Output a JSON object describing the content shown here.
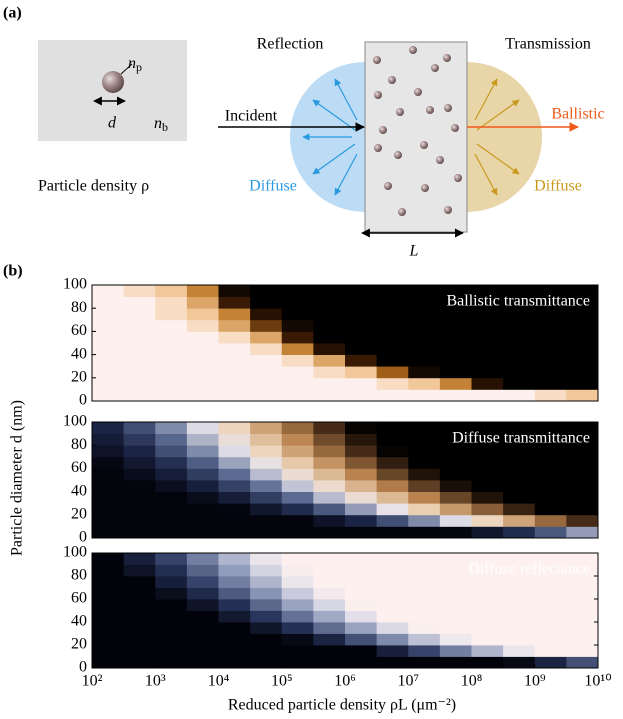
{
  "panel_a": {
    "label": "(a)",
    "n_p": {
      "base": "n",
      "sub": "p"
    },
    "d": "d",
    "n_b": {
      "base": "n",
      "sub": "b"
    },
    "density": "Particle density ρ",
    "reflection": "Reflection",
    "transmission": "Transmission",
    "incident": "Incident",
    "ballistic": "Ballistic",
    "diffuse_left": "Diffuse",
    "diffuse_right": "Diffuse",
    "L": "L"
  },
  "panel_b": {
    "label": "(b)",
    "xlabel": "Reduced particle density ρL (μm⁻²)",
    "ylabel": "Particle diameter d (nm)"
  },
  "chart_data": [
    {
      "type": "heatmap",
      "annotation": "Ballistic transmittance",
      "xscale": "log",
      "x_bins": [
        100,
        316.2,
        1000,
        3162,
        10000,
        31623,
        100000,
        316228,
        1000000,
        3162278,
        10000000,
        31622777,
        100000000,
        316227766,
        1000000000,
        3162277660,
        10000000000
      ],
      "y_bins": [
        0,
        10,
        20,
        30,
        40,
        50,
        60,
        70,
        80,
        90,
        100
      ],
      "xlim": [
        100,
        10000000000
      ],
      "ylim": [
        0,
        100
      ],
      "yticks": [
        0,
        20,
        40,
        60,
        80,
        100
      ],
      "colormap": [
        [
          0,
          "#000000"
        ],
        [
          0.3,
          "#3a1a05"
        ],
        [
          0.55,
          "#b8701e"
        ],
        [
          0.8,
          "#f2c89a"
        ],
        [
          1,
          "#fdf0ee"
        ]
      ],
      "values": [
        [
          1,
          1,
          1,
          1,
          1,
          1,
          1,
          1,
          1,
          1,
          1,
          1,
          1,
          1,
          0.9,
          0.8
        ],
        [
          1,
          1,
          1,
          1,
          1,
          1,
          1,
          1,
          1,
          0.9,
          0.8,
          0.6,
          0.2,
          0,
          0,
          0
        ],
        [
          1,
          1,
          1,
          1,
          1,
          1,
          1,
          0.9,
          0.8,
          0.5,
          0.1,
          0,
          0,
          0,
          0,
          0
        ],
        [
          1,
          1,
          1,
          1,
          1,
          1,
          0.9,
          0.7,
          0.3,
          0,
          0,
          0,
          0,
          0,
          0,
          0
        ],
        [
          1,
          1,
          1,
          1,
          1,
          0.9,
          0.6,
          0.2,
          0,
          0,
          0,
          0,
          0,
          0,
          0,
          0
        ],
        [
          1,
          1,
          1,
          1,
          0.9,
          0.7,
          0.3,
          0,
          0,
          0,
          0,
          0,
          0,
          0,
          0,
          0
        ],
        [
          1,
          1,
          1,
          0.9,
          0.7,
          0.4,
          0.1,
          0,
          0,
          0,
          0,
          0,
          0,
          0,
          0,
          0
        ],
        [
          1,
          1,
          0.9,
          0.8,
          0.6,
          0.2,
          0,
          0,
          0,
          0,
          0,
          0,
          0,
          0,
          0,
          0
        ],
        [
          1,
          1,
          0.9,
          0.7,
          0.3,
          0,
          0,
          0,
          0,
          0,
          0,
          0,
          0,
          0,
          0,
          0
        ],
        [
          1,
          0.9,
          0.8,
          0.6,
          0.1,
          0,
          0,
          0,
          0,
          0,
          0,
          0,
          0,
          0,
          0,
          0
        ]
      ]
    },
    {
      "type": "heatmap",
      "annotation": "Diffuse transmittance",
      "xscale": "log",
      "x_bins": [
        100,
        316.2,
        1000,
        3162,
        10000,
        31623,
        100000,
        316228,
        1000000,
        3162278,
        10000000,
        31622777,
        100000000,
        316227766,
        1000000000,
        3162277660,
        10000000000
      ],
      "y_bins": [
        0,
        10,
        20,
        30,
        40,
        50,
        60,
        70,
        80,
        90,
        100
      ],
      "xlim": [
        100,
        10000000000
      ],
      "ylim": [
        0,
        100
      ],
      "yticks": [
        0,
        20,
        40,
        60,
        80,
        100
      ],
      "colormap": [
        [
          0,
          "#03040c"
        ],
        [
          0.2,
          "#1c2648"
        ],
        [
          0.35,
          "#5b6b92"
        ],
        [
          0.5,
          "#e6e4ec"
        ],
        [
          0.6,
          "#eed4b8"
        ],
        [
          0.75,
          "#b9824e"
        ],
        [
          0.9,
          "#3e2614"
        ],
        [
          1,
          "#000000"
        ]
      ],
      "values": [
        [
          0,
          0,
          0,
          0,
          0,
          0,
          0,
          0,
          0,
          0,
          0,
          0.01,
          0.11,
          0.21,
          0.31,
          0.41
        ],
        [
          0,
          0,
          0,
          0,
          0,
          0,
          0,
          0.09,
          0.19,
          0.29,
          0.39,
          0.49,
          0.59,
          0.69,
          0.79,
          0.89
        ],
        [
          0,
          0,
          0,
          0,
          0.01,
          0.11,
          0.21,
          0.31,
          0.41,
          0.51,
          0.61,
          0.71,
          0.81,
          0.91,
          1,
          1
        ],
        [
          0,
          0,
          0,
          0.05,
          0.15,
          0.25,
          0.35,
          0.45,
          0.55,
          0.65,
          0.75,
          0.85,
          0.95,
          1,
          1,
          1
        ],
        [
          0,
          0,
          0.06,
          0.16,
          0.26,
          0.36,
          0.46,
          0.56,
          0.66,
          0.76,
          0.86,
          0.96,
          1,
          1,
          1,
          1
        ],
        [
          0,
          0.05,
          0.15,
          0.25,
          0.35,
          0.45,
          0.55,
          0.65,
          0.75,
          0.85,
          0.95,
          1,
          1,
          1,
          1,
          1
        ],
        [
          0.02,
          0.12,
          0.22,
          0.32,
          0.42,
          0.52,
          0.62,
          0.72,
          0.82,
          0.92,
          1,
          1,
          1,
          1,
          1,
          1
        ],
        [
          0.09,
          0.19,
          0.29,
          0.39,
          0.49,
          0.59,
          0.69,
          0.79,
          0.89,
          0.99,
          1,
          1,
          1,
          1,
          1,
          1
        ],
        [
          0.14,
          0.24,
          0.34,
          0.44,
          0.54,
          0.64,
          0.74,
          0.84,
          0.94,
          1,
          1,
          1,
          1,
          1,
          1,
          1
        ],
        [
          0.19,
          0.29,
          0.39,
          0.49,
          0.59,
          0.69,
          0.79,
          0.89,
          0.99,
          1,
          1,
          1,
          1,
          1,
          1,
          1
        ]
      ]
    },
    {
      "type": "heatmap",
      "annotation": "Diffuse reflectance",
      "xscale": "log",
      "x_bins": [
        100,
        316.2,
        1000,
        3162,
        10000,
        31623,
        100000,
        316228,
        1000000,
        3162278,
        10000000,
        31622777,
        100000000,
        316227766,
        1000000000,
        3162277660,
        10000000000
      ],
      "y_bins": [
        0,
        10,
        20,
        30,
        40,
        50,
        60,
        70,
        80,
        90,
        100
      ],
      "xlim": [
        100,
        10000000000
      ],
      "ylim": [
        0,
        100
      ],
      "yticks": [
        0,
        20,
        40,
        60,
        80,
        100
      ],
      "xticks": [
        {
          "value": 100,
          "label": "10²"
        },
        {
          "value": 1000,
          "label": "10³"
        },
        {
          "value": 10000,
          "label": "10⁴"
        },
        {
          "value": 100000,
          "label": "10⁵"
        },
        {
          "value": 1000000,
          "label": "10⁶"
        },
        {
          "value": 10000000,
          "label": "10⁷"
        },
        {
          "value": 100000000,
          "label": "10⁸"
        },
        {
          "value": 1000000000,
          "label": "10⁹"
        },
        {
          "value": 10000000000,
          "label": "10¹⁰"
        }
      ],
      "colormap": [
        [
          0,
          "#02030a"
        ],
        [
          0.3,
          "#26325a"
        ],
        [
          0.6,
          "#8a97b8"
        ],
        [
          0.85,
          "#e6e2ec"
        ],
        [
          1,
          "#fdf0ee"
        ]
      ],
      "values": [
        [
          0,
          0,
          0,
          0,
          0,
          0,
          0,
          0,
          0,
          0,
          0,
          0,
          0,
          0.04,
          0.21,
          0.39
        ],
        [
          0,
          0,
          0,
          0,
          0,
          0,
          0,
          0,
          0,
          0.18,
          0.35,
          0.53,
          0.7,
          0.88,
          1,
          1
        ],
        [
          0,
          0,
          0,
          0,
          0,
          0,
          0.04,
          0.21,
          0.39,
          0.56,
          0.74,
          0.91,
          1,
          1,
          1,
          1
        ],
        [
          0,
          0,
          0,
          0,
          0,
          0.12,
          0.29,
          0.47,
          0.64,
          0.82,
          0.99,
          1,
          1,
          1,
          1,
          1
        ],
        [
          0,
          0,
          0,
          0,
          0.14,
          0.31,
          0.49,
          0.66,
          0.84,
          1,
          1,
          1,
          1,
          1,
          1,
          1
        ],
        [
          0,
          0,
          0,
          0.11,
          0.29,
          0.46,
          0.64,
          0.81,
          0.99,
          1,
          1,
          1,
          1,
          1,
          1,
          1
        ],
        [
          0,
          0,
          0.07,
          0.24,
          0.42,
          0.59,
          0.77,
          0.94,
          1,
          1,
          1,
          1,
          1,
          1,
          1,
          1
        ],
        [
          0,
          0,
          0.18,
          0.35,
          0.53,
          0.7,
          0.88,
          1,
          1,
          1,
          1,
          1,
          1,
          1,
          1,
          1
        ],
        [
          0,
          0.1,
          0.27,
          0.45,
          0.62,
          0.8,
          0.97,
          1,
          1,
          1,
          1,
          1,
          1,
          1,
          1,
          1
        ],
        [
          0,
          0.18,
          0.35,
          0.53,
          0.7,
          0.88,
          1,
          1,
          1,
          1,
          1,
          1,
          1,
          1,
          1,
          1
        ]
      ]
    }
  ]
}
